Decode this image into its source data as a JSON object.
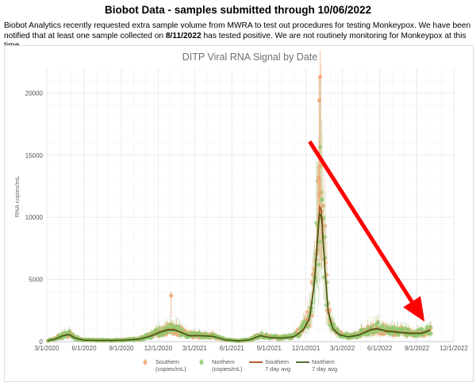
{
  "header": {
    "title": "Biobot Data - samples submitted through 10/06/2022",
    "notice_part1": "Biobot Analytics recently requested extra sample volume from MWRA to test out procedures for testing Monkeypox. We have been notified that at least one sample collected on ",
    "notice_date": "8/11/2022",
    "notice_part2": " has tested positive. We are not routinely monitoring for Monkeypox at this time."
  },
  "chart_data": {
    "type": "line",
    "title": "DITP Viral RNA Signal by Date",
    "xlabel": "",
    "ylabel": "RNA copies/mL",
    "ylim": [
      0,
      22000
    ],
    "xlim": [
      "3/1/2020",
      "12/1/2022"
    ],
    "x_ticks": [
      "3/1/2020",
      "6/1/2020",
      "9/1/2020",
      "12/1/2020",
      "3/1/2021",
      "6/1/2021",
      "9/1/2021",
      "12/1/2021",
      "3/1/2022",
      "6/1/2022",
      "9/1/2022",
      "12/1/2022"
    ],
    "y_ticks": [
      0,
      5000,
      10000,
      15000,
      20000
    ],
    "grid": true,
    "legend_position": "bottom",
    "colors": {
      "southern": "#f4a373",
      "northern": "#8fc86e",
      "southern_avg": "#a9430f",
      "northern_avg": "#3e5a1a",
      "arrow": "#ff0000"
    },
    "series": [
      {
        "name": "Southern (copies/mL)",
        "kind": "points"
      },
      {
        "name": "Northern (copies/mL)",
        "kind": "points"
      },
      {
        "name": "Southern 7 day avg",
        "kind": "line"
      },
      {
        "name": "Northern 7 day avg",
        "kind": "line"
      }
    ],
    "trend_points": [
      {
        "date": "3/1/2020",
        "value": 60
      },
      {
        "date": "3/20/2020",
        "value": 200
      },
      {
        "date": "4/10/2020",
        "value": 500
      },
      {
        "date": "4/25/2020",
        "value": 600
      },
      {
        "date": "5/10/2020",
        "value": 300
      },
      {
        "date": "6/1/2020",
        "value": 120
      },
      {
        "date": "7/15/2020",
        "value": 100
      },
      {
        "date": "9/1/2020",
        "value": 110
      },
      {
        "date": "10/15/2020",
        "value": 200
      },
      {
        "date": "11/15/2020",
        "value": 500
      },
      {
        "date": "12/5/2020",
        "value": 800
      },
      {
        "date": "12/25/2020",
        "value": 1000
      },
      {
        "date": "1/10/2021",
        "value": 1000
      },
      {
        "date": "1/25/2021",
        "value": 800
      },
      {
        "date": "2/15/2021",
        "value": 500
      },
      {
        "date": "3/15/2021",
        "value": 500
      },
      {
        "date": "4/15/2021",
        "value": 450
      },
      {
        "date": "5/15/2021",
        "value": 150
      },
      {
        "date": "6/15/2021",
        "value": 60
      },
      {
        "date": "7/15/2021",
        "value": 150
      },
      {
        "date": "8/10/2021",
        "value": 500
      },
      {
        "date": "9/1/2021",
        "value": 350
      },
      {
        "date": "10/1/2021",
        "value": 300
      },
      {
        "date": "11/1/2021",
        "value": 400
      },
      {
        "date": "11/25/2021",
        "value": 1000
      },
      {
        "date": "12/10/2021",
        "value": 2000
      },
      {
        "date": "12/22/2021",
        "value": 5000
      },
      {
        "date": "12/30/2021",
        "value": 9000
      },
      {
        "date": "1/5/2022",
        "value": 11500
      },
      {
        "date": "1/10/2022",
        "value": 10000
      },
      {
        "date": "1/17/2022",
        "value": 6000
      },
      {
        "date": "1/25/2022",
        "value": 2500
      },
      {
        "date": "2/5/2022",
        "value": 1100
      },
      {
        "date": "2/20/2022",
        "value": 600
      },
      {
        "date": "3/15/2022",
        "value": 400
      },
      {
        "date": "4/10/2022",
        "value": 550
      },
      {
        "date": "5/10/2022",
        "value": 1000
      },
      {
        "date": "5/25/2022",
        "value": 1100
      },
      {
        "date": "6/15/2022",
        "value": 900
      },
      {
        "date": "7/15/2022",
        "value": 800
      },
      {
        "date": "8/15/2022",
        "value": 700
      },
      {
        "date": "9/10/2022",
        "value": 700
      },
      {
        "date": "9/25/2022",
        "value": 850
      },
      {
        "date": "10/6/2022",
        "value": 1000
      }
    ],
    "spike_points": [
      {
        "date": "1/5/2022",
        "value": 21300
      },
      {
        "date": "1/3/2022",
        "value": 19400
      },
      {
        "date": "1/1/2022",
        "value": 13200
      },
      {
        "date": "12/30/2021",
        "value": 12900
      },
      {
        "date": "1/7/2022",
        "value": 12000
      },
      {
        "date": "1/9/2022",
        "value": 10500
      },
      {
        "date": "1/2/2021",
        "value": 3700
      }
    ],
    "annotation": {
      "type": "arrow",
      "from_date": "12/10/2021",
      "from_value": 16100,
      "to_date": "9/20/2022",
      "to_value": 1600
    }
  },
  "legend": {
    "southern_points": [
      "Southern",
      "(copies/mL)"
    ],
    "northern_points": [
      "Northern",
      "(copies/mL)"
    ],
    "southern_avg": [
      "Southern",
      "7 day avg"
    ],
    "northern_avg": [
      "Northern",
      "7 day avg"
    ]
  }
}
